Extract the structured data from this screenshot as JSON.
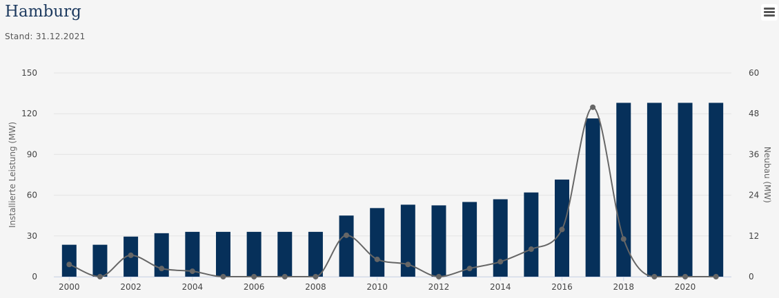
{
  "header": {
    "title": "Hamburg",
    "subtitle": "Stand: 31.12.2021"
  },
  "toolbar": {
    "menu_icon": "hamburger-menu-icon"
  },
  "colors": {
    "bar": "#06305a",
    "line": "#666666",
    "grid": "#e3e3e3",
    "background": "#f5f5f5"
  },
  "chart_data": {
    "type": "bar",
    "categories": [
      "2000",
      "2001",
      "2002",
      "2003",
      "2004",
      "2005",
      "2006",
      "2007",
      "2008",
      "2009",
      "2010",
      "2011",
      "2012",
      "2013",
      "2014",
      "2015",
      "2016",
      "2017",
      "2018",
      "2019",
      "2020",
      "2021"
    ],
    "series": [
      {
        "type": "bar",
        "axis": "left",
        "values": [
          23.5,
          23.5,
          29.5,
          32,
          33,
          33,
          33,
          33,
          33,
          45,
          50.5,
          53,
          52.5,
          55,
          57,
          62,
          71.5,
          116.5,
          128,
          128,
          128,
          128
        ]
      },
      {
        "type": "line",
        "axis": "right",
        "values": [
          3.6,
          0,
          6.3,
          2.4,
          1.6,
          0,
          0,
          0,
          0,
          12.2,
          5.1,
          3.6,
          0,
          2.4,
          4.4,
          8.1,
          13.9,
          49.9,
          11.1,
          0,
          0,
          0
        ]
      }
    ],
    "ylabel": "Installierte Leistung (MW)",
    "y2label": "Neubau (MW)",
    "ylim": [
      0,
      150
    ],
    "y2lim": [
      0,
      60
    ],
    "yticks": [
      0,
      30,
      60,
      90,
      120,
      150
    ],
    "y2ticks": [
      0,
      12,
      24,
      36,
      48,
      60
    ],
    "xticks": [
      "2000",
      "2002",
      "2004",
      "2006",
      "2008",
      "2010",
      "2012",
      "2014",
      "2016",
      "2018",
      "2020"
    ],
    "grid": true,
    "legend": "none"
  }
}
